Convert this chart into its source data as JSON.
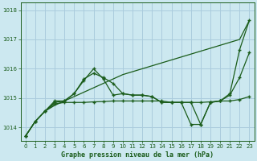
{
  "title": "Graphe pression niveau de la mer (hPa)",
  "bg_color": "#cce8f0",
  "grid_color": "#aaccdd",
  "line_color": "#1a5c1a",
  "xlim": [
    -0.5,
    23.5
  ],
  "ylim": [
    1013.55,
    1018.25
  ],
  "yticks": [
    1014,
    1015,
    1016,
    1017,
    1018
  ],
  "xticks": [
    0,
    1,
    2,
    3,
    4,
    5,
    6,
    7,
    8,
    9,
    10,
    11,
    12,
    13,
    14,
    15,
    16,
    17,
    18,
    19,
    20,
    21,
    22,
    23
  ],
  "line1_straight": [
    1013.7,
    1014.2,
    1014.55,
    1014.75,
    1014.9,
    1015.05,
    1015.2,
    1015.35,
    1015.5,
    1015.65,
    1015.8,
    1015.9,
    1016.0,
    1016.1,
    1016.2,
    1016.3,
    1016.4,
    1016.5,
    1016.6,
    1016.7,
    1016.8,
    1016.9,
    1017.0,
    1017.65
  ],
  "line2_jagged_high": [
    1013.7,
    1014.2,
    1014.55,
    1014.9,
    1014.9,
    1015.15,
    1015.65,
    1015.85,
    1015.7,
    1015.5,
    1015.15,
    1015.1,
    1015.1,
    1015.05,
    1014.85,
    1014.85,
    1014.85,
    1014.85,
    1014.1,
    1014.85,
    1014.9,
    1015.15,
    1016.65,
    1017.65
  ],
  "line3_jagged_med": [
    1013.7,
    1014.2,
    1014.55,
    1014.85,
    1014.9,
    1015.15,
    1015.6,
    1016.0,
    1015.65,
    1015.1,
    1015.15,
    1015.1,
    1015.1,
    1015.05,
    1014.85,
    1014.85,
    1014.85,
    1014.1,
    1014.1,
    1014.85,
    1014.9,
    1015.1,
    1015.7,
    1016.55
  ],
  "line4_flat": [
    1013.7,
    1014.2,
    1014.55,
    1014.8,
    1014.85,
    1014.85,
    1014.85,
    1014.87,
    1014.88,
    1014.9,
    1014.9,
    1014.9,
    1014.9,
    1014.9,
    1014.9,
    1014.85,
    1014.85,
    1014.85,
    1014.85,
    1014.87,
    1014.9,
    1014.9,
    1014.95,
    1015.05
  ]
}
